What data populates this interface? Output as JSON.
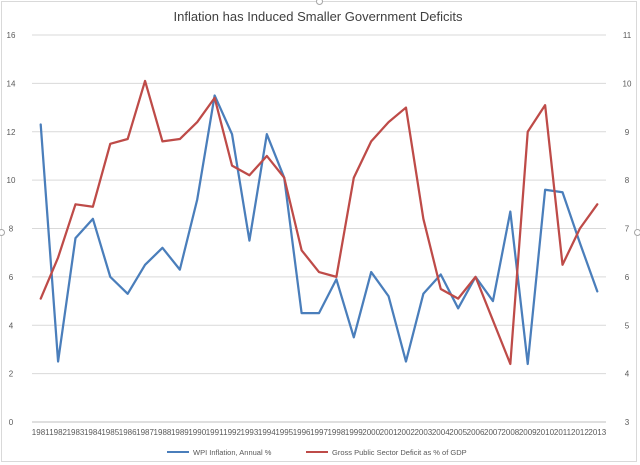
{
  "chart_data": {
    "type": "line",
    "title": "Inflation has Induced Smaller Government Deficits",
    "categories": [
      "1981",
      "1982",
      "1983",
      "1984",
      "1985",
      "1986",
      "1987",
      "1988",
      "1989",
      "1990",
      "1991",
      "1992",
      "1993",
      "1994",
      "1995",
      "1996",
      "1997",
      "1998",
      "1999",
      "2000",
      "2001",
      "2002",
      "2003",
      "2004",
      "2005",
      "2006",
      "2007",
      "2008",
      "2009",
      "2010",
      "2011",
      "2012",
      "2013"
    ],
    "y_left": {
      "min": 0,
      "max": 16,
      "ticks": [
        "0",
        "2",
        "4",
        "6",
        "8",
        "10",
        "12",
        "14",
        "16"
      ]
    },
    "y_right": {
      "min": 3,
      "max": 11,
      "ticks": [
        "3",
        "4",
        "5",
        "6",
        "7",
        "8",
        "9",
        "10",
        "11"
      ]
    },
    "grid": true,
    "legend_position": "bottom",
    "series": [
      {
        "name": "WPI Inflation, Annual %",
        "axis": "left",
        "color": "#4a7ebb",
        "values": [
          12.3,
          2.5,
          7.6,
          8.4,
          6.0,
          5.3,
          6.5,
          7.2,
          6.3,
          9.2,
          13.5,
          11.9,
          7.5,
          11.9,
          10.1,
          4.5,
          4.5,
          5.9,
          3.5,
          6.2,
          5.2,
          2.5,
          5.3,
          6.1,
          4.7,
          6.0,
          5.0,
          8.7,
          2.4,
          9.6,
          9.5,
          7.4,
          5.4
        ]
      },
      {
        "name": "Gross Public Sector Deficit as % of GDP",
        "axis": "right",
        "color": "#be4b48",
        "values": [
          5.55,
          6.4,
          7.5,
          7.45,
          8.75,
          8.85,
          10.05,
          8.8,
          8.85,
          9.2,
          9.7,
          8.3,
          8.1,
          8.5,
          8.05,
          6.55,
          6.1,
          6.0,
          8.05,
          8.8,
          9.2,
          9.5,
          7.2,
          5.75,
          5.55,
          6.0,
          5.1,
          4.2,
          9.0,
          9.55,
          6.25,
          7.0,
          7.5
        ]
      }
    ]
  }
}
